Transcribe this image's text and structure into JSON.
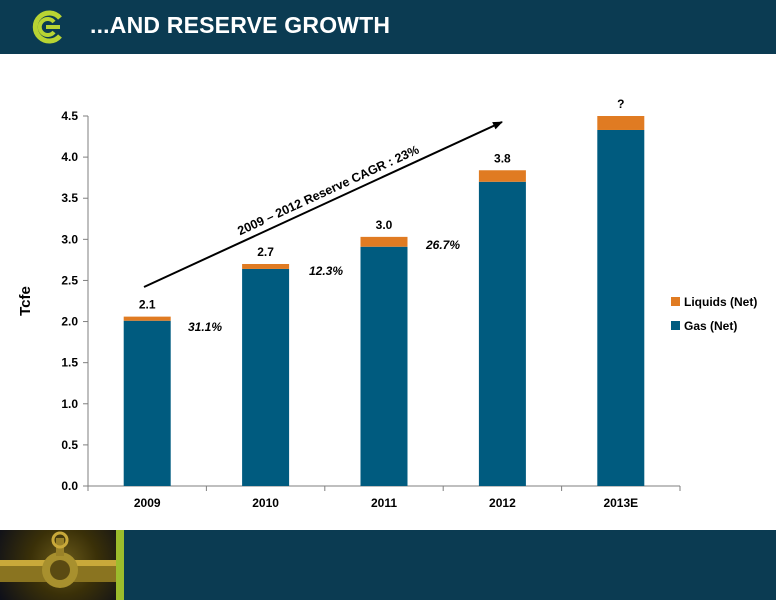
{
  "header": {
    "title": "...AND RESERVE GROWTH",
    "logo_icon": "company-logo-icon",
    "background": "#0b3b52"
  },
  "footer": {
    "image_icon": "pipeline-valve-photo-icon",
    "stripe_color": "#9cbc2c"
  },
  "chart_data": {
    "type": "bar",
    "stacked": true,
    "categories": [
      "2009",
      "2010",
      "2011",
      "2012",
      "2013E"
    ],
    "series": [
      {
        "name": "Gas (Net)",
        "color": "#005b7f",
        "values": [
          2.01,
          2.64,
          2.91,
          3.7,
          4.33
        ]
      },
      {
        "name": "Liquids (Net)",
        "color": "#e07b22",
        "values": [
          0.05,
          0.06,
          0.12,
          0.14,
          0.17
        ]
      }
    ],
    "total_labels": [
      "2.1",
      "2.7",
      "3.0",
      "3.8",
      "?"
    ],
    "growth_labels": [
      "31.1%",
      "12.3%",
      "26.7%"
    ],
    "cagr_label": "2009 – 2012 Reserve CAGR :  23%",
    "ylabel": "Tcfe",
    "ylim": [
      0,
      4.5
    ],
    "yticks": [
      "0.0",
      "0.5",
      "1.0",
      "1.5",
      "2.0",
      "2.5",
      "3.0",
      "3.5",
      "4.0",
      "4.5"
    ],
    "grid": false,
    "legend_position": "right"
  }
}
